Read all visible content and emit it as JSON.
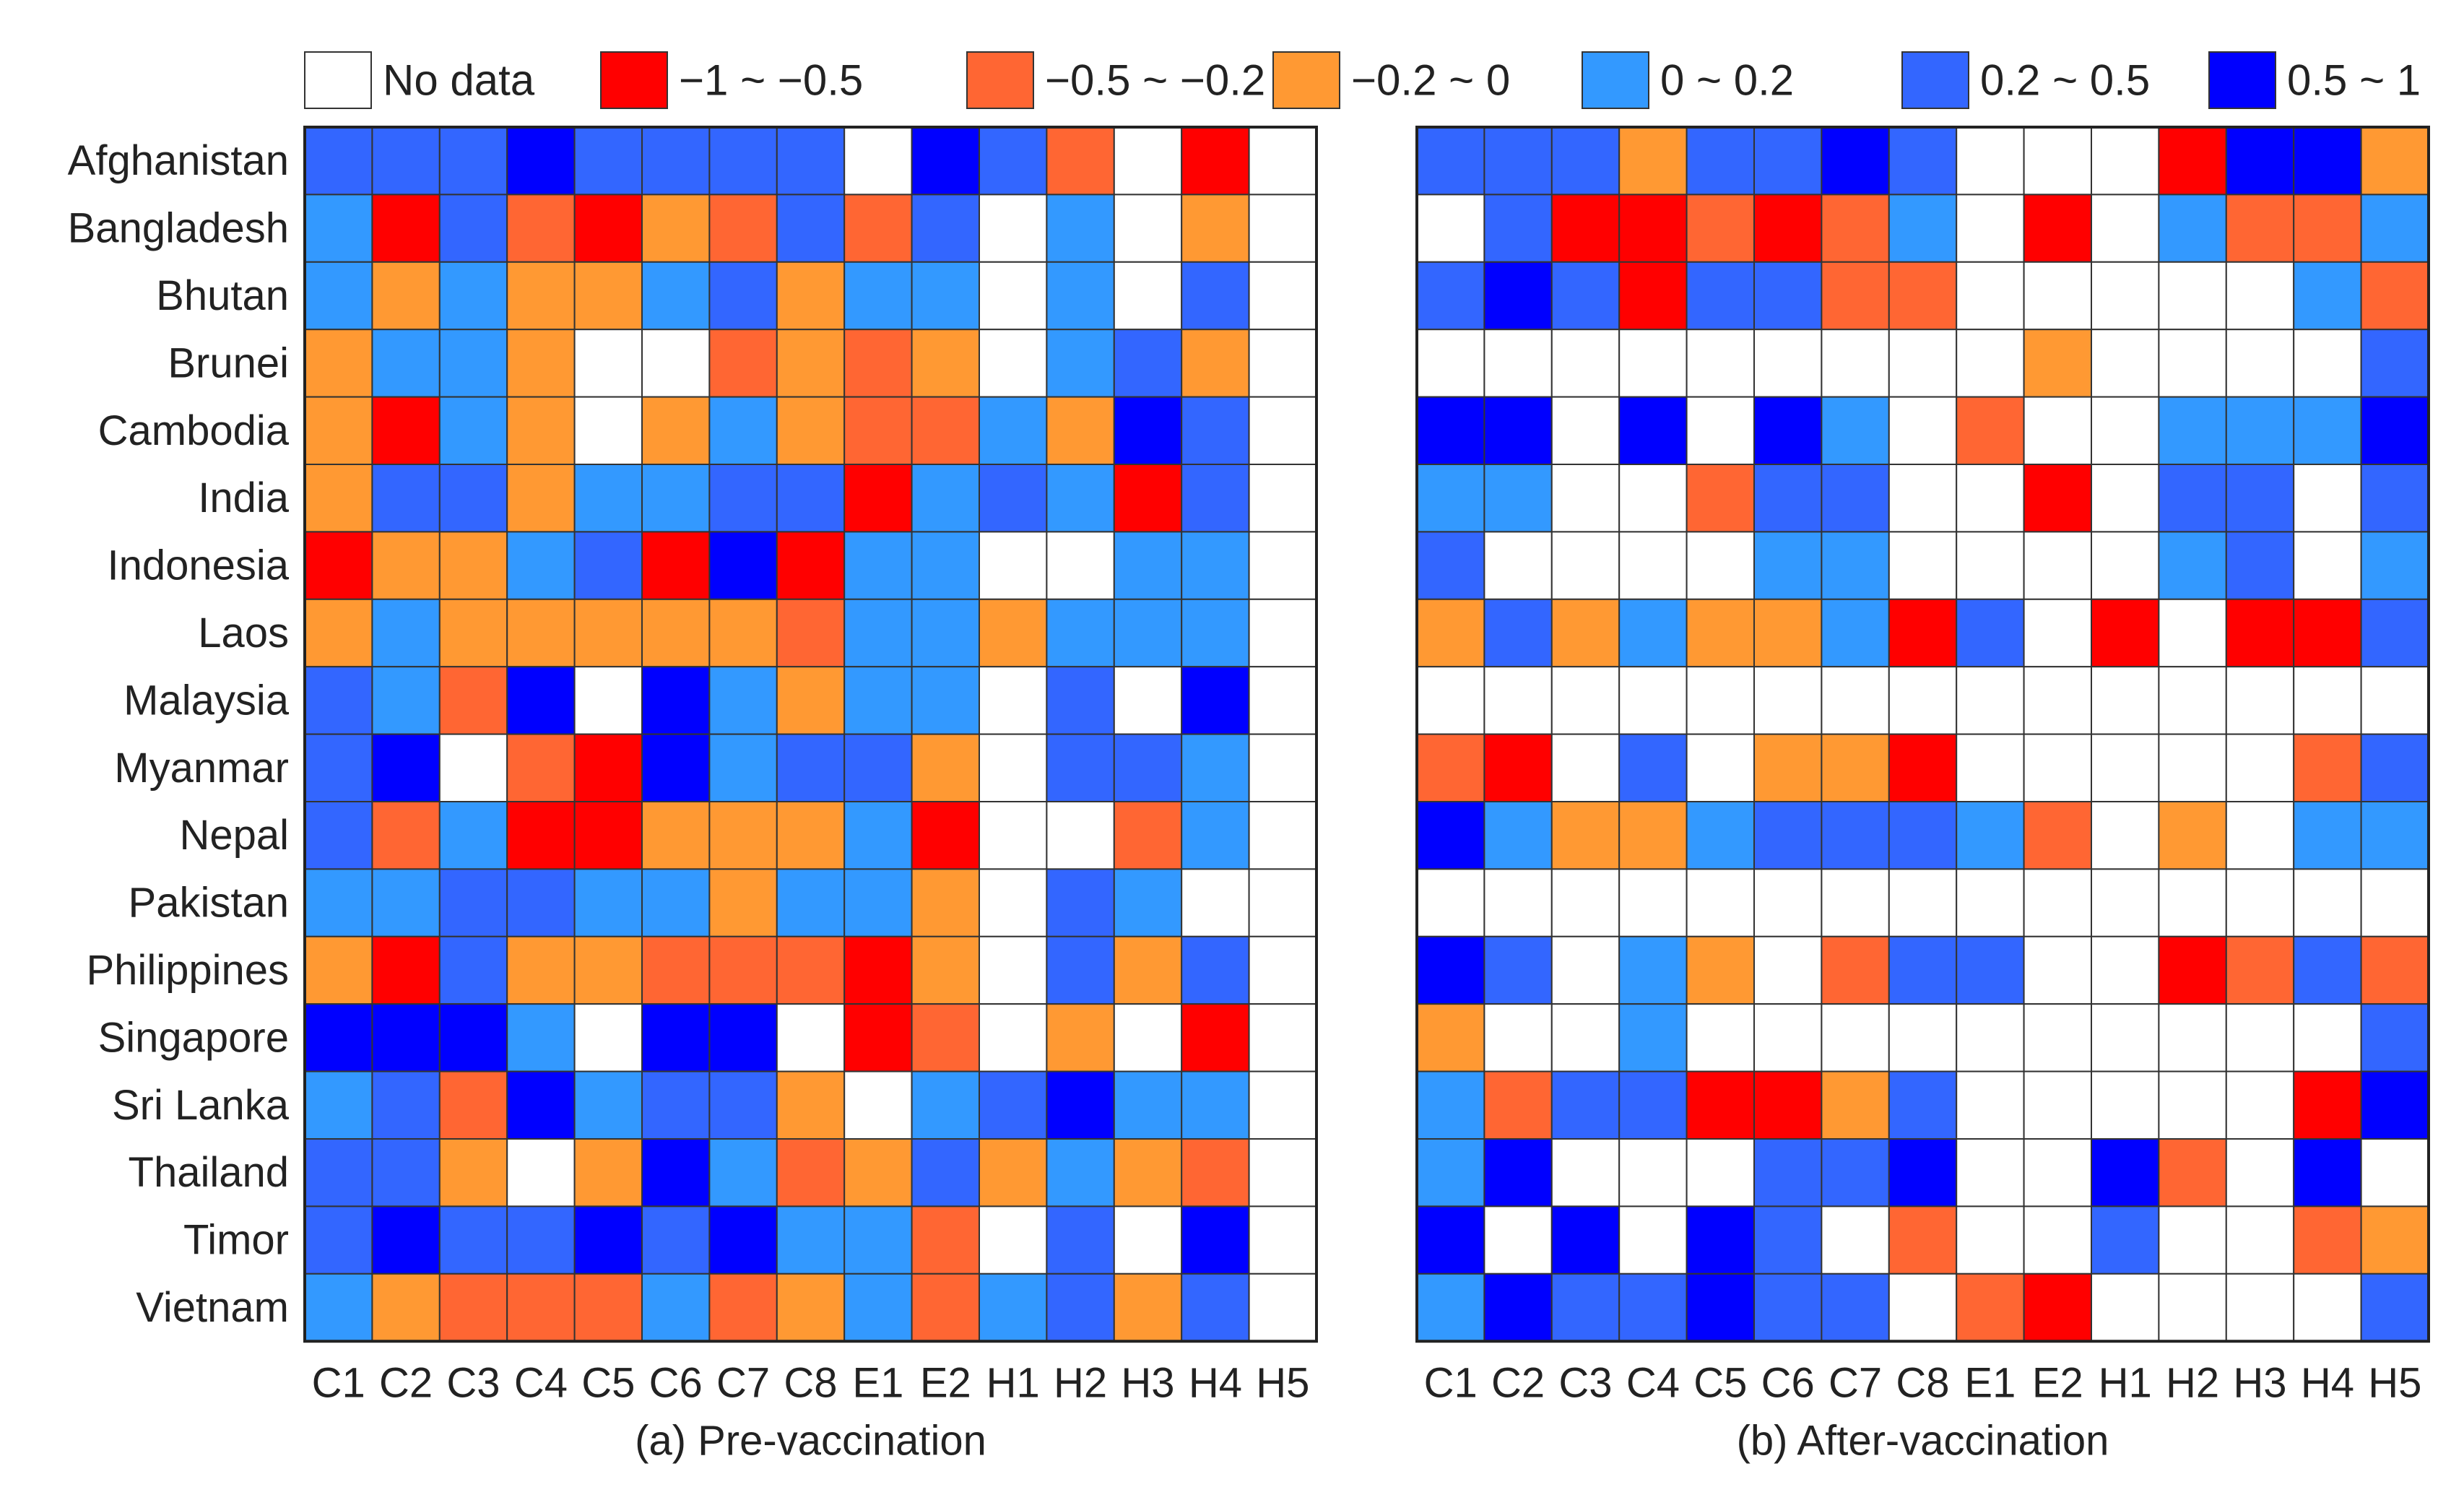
{
  "chart_data": [
    {
      "type": "heatmap",
      "caption": "(a) Pre-vaccination",
      "rows": [
        "Afghanistan",
        "Bangladesh",
        "Bhutan",
        "Brunei",
        "Cambodia",
        "India",
        "Indonesia",
        "Laos",
        "Malaysia",
        "Myanmar",
        "Nepal",
        "Pakistan",
        "Philippines",
        "Singapore",
        "Sri Lanka",
        "Thailand",
        "Timor",
        "Vietnam"
      ],
      "columns": [
        "C1",
        "C2",
        "C3",
        "C4",
        "C5",
        "C6",
        "C7",
        "C8",
        "E1",
        "E2",
        "H1",
        "H2",
        "H3",
        "H4",
        "H5"
      ],
      "cells": [
        [
          5,
          5,
          5,
          6,
          5,
          5,
          5,
          5,
          0,
          6,
          5,
          2,
          0,
          1,
          0
        ],
        [
          4,
          1,
          5,
          2,
          1,
          3,
          2,
          5,
          2,
          5,
          0,
          4,
          0,
          3,
          0
        ],
        [
          4,
          3,
          4,
          3,
          3,
          4,
          5,
          3,
          4,
          4,
          0,
          4,
          0,
          5,
          0
        ],
        [
          3,
          4,
          4,
          3,
          0,
          0,
          2,
          3,
          2,
          3,
          0,
          4,
          5,
          3,
          0
        ],
        [
          3,
          1,
          4,
          3,
          0,
          3,
          4,
          3,
          2,
          2,
          4,
          3,
          6,
          5,
          0
        ],
        [
          3,
          5,
          5,
          3,
          4,
          4,
          5,
          5,
          1,
          4,
          5,
          4,
          1,
          5,
          0
        ],
        [
          1,
          3,
          3,
          4,
          5,
          1,
          6,
          1,
          4,
          4,
          0,
          0,
          4,
          4,
          0
        ],
        [
          3,
          4,
          3,
          3,
          3,
          3,
          3,
          2,
          4,
          4,
          3,
          4,
          4,
          4,
          0
        ],
        [
          5,
          4,
          2,
          6,
          0,
          6,
          4,
          3,
          4,
          4,
          0,
          5,
          0,
          6,
          0
        ],
        [
          5,
          6,
          0,
          2,
          1,
          6,
          4,
          5,
          5,
          3,
          0,
          5,
          5,
          4,
          0
        ],
        [
          5,
          2,
          4,
          1,
          1,
          3,
          3,
          3,
          4,
          1,
          0,
          0,
          2,
          4,
          0
        ],
        [
          4,
          4,
          5,
          5,
          4,
          4,
          3,
          4,
          4,
          3,
          0,
          5,
          4,
          0,
          0
        ],
        [
          3,
          1,
          5,
          3,
          3,
          2,
          2,
          2,
          1,
          3,
          0,
          5,
          3,
          5,
          0
        ],
        [
          6,
          6,
          6,
          4,
          0,
          6,
          6,
          0,
          1,
          2,
          0,
          3,
          0,
          1,
          0
        ],
        [
          4,
          5,
          2,
          6,
          4,
          5,
          5,
          3,
          0,
          4,
          5,
          6,
          4,
          4,
          0
        ],
        [
          5,
          5,
          3,
          0,
          3,
          6,
          4,
          2,
          3,
          5,
          3,
          4,
          3,
          2,
          0
        ],
        [
          5,
          6,
          5,
          5,
          6,
          5,
          6,
          4,
          4,
          2,
          0,
          5,
          0,
          6,
          0
        ],
        [
          4,
          3,
          2,
          2,
          2,
          4,
          2,
          3,
          4,
          2,
          4,
          5,
          3,
          5,
          0
        ]
      ]
    },
    {
      "type": "heatmap",
      "caption": "(b) After-vaccination",
      "rows": [
        "Afghanistan",
        "Bangladesh",
        "Bhutan",
        "Brunei",
        "Cambodia",
        "India",
        "Indonesia",
        "Laos",
        "Malaysia",
        "Myanmar",
        "Nepal",
        "Pakistan",
        "Philippines",
        "Singapore",
        "Sri Lanka",
        "Thailand",
        "Timor",
        "Vietnam"
      ],
      "columns": [
        "C1",
        "C2",
        "C3",
        "C4",
        "C5",
        "C6",
        "C7",
        "C8",
        "E1",
        "E2",
        "H1",
        "H2",
        "H3",
        "H4",
        "H5"
      ],
      "cells": [
        [
          5,
          5,
          5,
          3,
          5,
          5,
          6,
          5,
          0,
          0,
          0,
          1,
          6,
          6,
          3
        ],
        [
          0,
          5,
          1,
          1,
          2,
          1,
          2,
          4,
          0,
          1,
          0,
          4,
          2,
          2,
          4
        ],
        [
          5,
          6,
          5,
          1,
          5,
          5,
          2,
          2,
          0,
          0,
          0,
          0,
          0,
          4,
          2
        ],
        [
          0,
          0,
          0,
          0,
          0,
          0,
          0,
          0,
          0,
          3,
          0,
          0,
          0,
          0,
          5
        ],
        [
          6,
          6,
          0,
          6,
          0,
          6,
          4,
          0,
          2,
          0,
          0,
          4,
          4,
          4,
          6
        ],
        [
          4,
          4,
          0,
          0,
          2,
          5,
          5,
          0,
          0,
          1,
          0,
          5,
          5,
          0,
          5
        ],
        [
          5,
          0,
          0,
          0,
          0,
          4,
          4,
          0,
          0,
          0,
          0,
          4,
          5,
          0,
          4
        ],
        [
          3,
          5,
          3,
          4,
          3,
          3,
          4,
          1,
          5,
          0,
          1,
          0,
          1,
          1,
          5
        ],
        [
          0,
          0,
          0,
          0,
          0,
          0,
          0,
          0,
          0,
          0,
          0,
          0,
          0,
          0,
          0
        ],
        [
          2,
          1,
          0,
          5,
          0,
          3,
          3,
          1,
          0,
          0,
          0,
          0,
          0,
          2,
          5
        ],
        [
          6,
          4,
          3,
          3,
          4,
          5,
          5,
          5,
          4,
          2,
          0,
          3,
          0,
          4,
          4
        ],
        [
          0,
          0,
          0,
          0,
          0,
          0,
          0,
          0,
          0,
          0,
          0,
          0,
          0,
          0,
          0
        ],
        [
          6,
          5,
          0,
          4,
          3,
          0,
          2,
          5,
          5,
          0,
          0,
          1,
          2,
          5,
          2
        ],
        [
          3,
          0,
          0,
          4,
          0,
          0,
          0,
          0,
          0,
          0,
          0,
          0,
          0,
          0,
          5
        ],
        [
          4,
          2,
          5,
          5,
          1,
          1,
          3,
          5,
          0,
          0,
          0,
          0,
          0,
          1,
          6
        ],
        [
          4,
          6,
          0,
          0,
          0,
          5,
          5,
          6,
          0,
          0,
          6,
          2,
          0,
          6,
          0
        ],
        [
          6,
          0,
          6,
          0,
          6,
          5,
          0,
          2,
          0,
          0,
          5,
          0,
          0,
          2,
          3
        ],
        [
          4,
          6,
          5,
          5,
          6,
          5,
          5,
          0,
          2,
          1,
          0,
          0,
          0,
          0,
          5
        ]
      ]
    }
  ],
  "legend": [
    {
      "label": "No data",
      "color": "#ffffff"
    },
    {
      "label": "−1 ~ −0.5",
      "color": "#ff0000"
    },
    {
      "label": "−0.5 ~ −0.2",
      "color": "#ff6633"
    },
    {
      "label": "−0.2 ~ 0",
      "color": "#ff9933"
    },
    {
      "label": "0 ~ 0.2",
      "color": "#3399ff"
    },
    {
      "label": "0.2 ~ 0.5",
      "color": "#3366ff"
    },
    {
      "label": "0.5 ~ 1",
      "color": "#0000ff"
    }
  ]
}
